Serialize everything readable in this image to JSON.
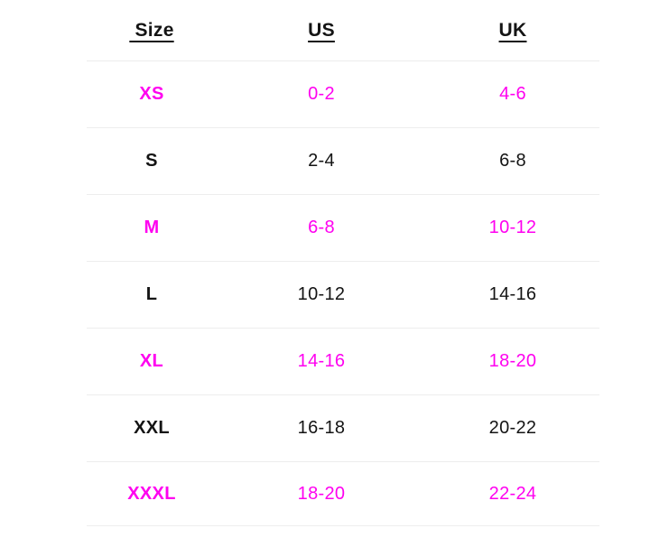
{
  "colors": {
    "accent": "#FF00F0",
    "text": "#141414",
    "divider": "#EDEDED",
    "background": "#FFFFFF"
  },
  "table": {
    "headers": {
      "size": " Size",
      "us": "US",
      "uk": "UK"
    },
    "rows": [
      {
        "size": "XS",
        "us": "0-2",
        "uk": "4-6",
        "highlighted": true
      },
      {
        "size": "S",
        "us": "2-4",
        "uk": "6-8",
        "highlighted": false
      },
      {
        "size": "M",
        "us": "6-8",
        "uk": "10-12",
        "highlighted": true
      },
      {
        "size": "L",
        "us": "10-12",
        "uk": "14-16",
        "highlighted": false
      },
      {
        "size": "XL",
        "us": "14-16",
        "uk": "18-20",
        "highlighted": true
      },
      {
        "size": "XXL",
        "us": "16-18",
        "uk": "20-22",
        "highlighted": false
      },
      {
        "size": "XXXL",
        "us": "18-20",
        "uk": "22-24",
        "highlighted": true
      }
    ]
  }
}
